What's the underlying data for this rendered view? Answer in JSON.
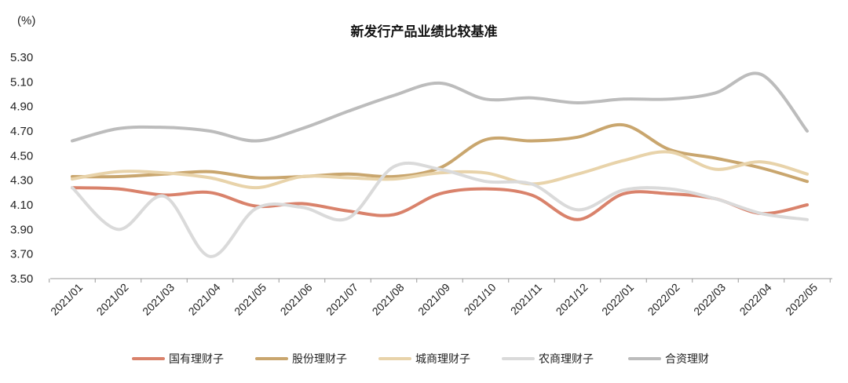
{
  "chart_data": {
    "type": "line",
    "title": "新发行产品业绩比较基准",
    "y_unit": "(%)",
    "ylim": [
      3.5,
      5.3
    ],
    "y_ticks": [
      "3.50",
      "3.70",
      "3.90",
      "4.10",
      "4.30",
      "4.50",
      "4.70",
      "4.90",
      "5.10",
      "5.30"
    ],
    "categories": [
      "2021/01",
      "2021/02",
      "2021/03",
      "2021/04",
      "2021/05",
      "2021/06",
      "2021/07",
      "2021/08",
      "2021/09",
      "2021/10",
      "2021/11",
      "2021/12",
      "2022/01",
      "2022/02",
      "2022/03",
      "2022/04",
      "2022/05"
    ],
    "grid": false,
    "legend_position": "bottom",
    "series": [
      {
        "name": "国有理财子",
        "color": "#d9826b",
        "values": [
          4.24,
          4.23,
          4.18,
          4.2,
          4.09,
          4.11,
          4.05,
          4.02,
          4.19,
          4.23,
          4.18,
          3.98,
          4.19,
          4.19,
          4.15,
          4.03,
          4.1
        ]
      },
      {
        "name": "股份理财子",
        "color": "#c9a66e",
        "values": [
          4.33,
          4.33,
          4.35,
          4.37,
          4.32,
          4.33,
          4.35,
          4.33,
          4.4,
          4.63,
          4.62,
          4.65,
          4.75,
          4.55,
          4.48,
          4.4,
          4.29
        ]
      },
      {
        "name": "城商理财子",
        "color": "#e8d3aa",
        "values": [
          4.31,
          4.37,
          4.36,
          4.32,
          4.24,
          4.33,
          4.32,
          4.31,
          4.36,
          4.36,
          4.27,
          4.35,
          4.46,
          4.53,
          4.39,
          4.45,
          4.35
        ]
      },
      {
        "name": "农商理财子",
        "color": "#dadada",
        "values": [
          4.24,
          3.9,
          4.17,
          3.68,
          4.07,
          4.08,
          3.99,
          4.41,
          4.39,
          4.29,
          4.27,
          4.06,
          4.22,
          4.23,
          4.15,
          4.03,
          3.98
        ]
      },
      {
        "name": "合资理财",
        "color": "#bcbcbc",
        "values": [
          4.62,
          4.72,
          4.73,
          4.7,
          4.62,
          4.72,
          4.86,
          4.99,
          5.09,
          4.96,
          4.97,
          4.93,
          4.96,
          4.96,
          5.01,
          5.16,
          4.7
        ]
      }
    ]
  }
}
